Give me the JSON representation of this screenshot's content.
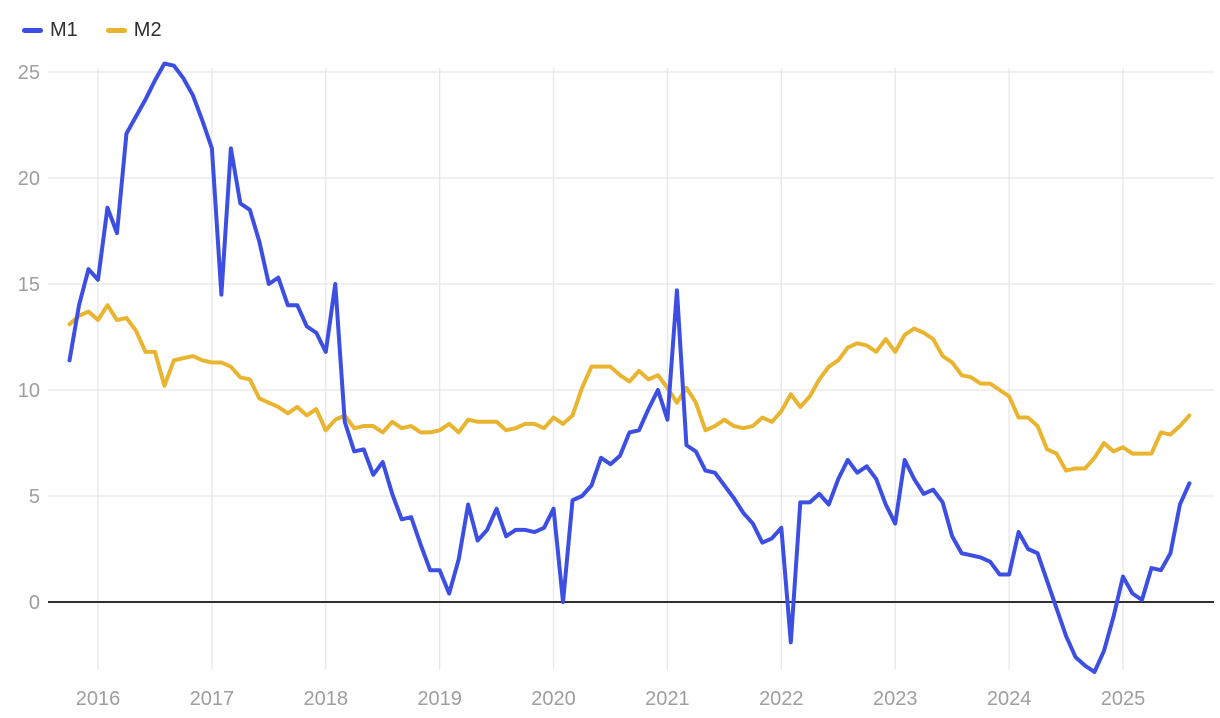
{
  "legend": {
    "items": [
      {
        "label": "M1",
        "color": "#3c4fe2"
      },
      {
        "label": "M2",
        "color": "#e9b42f"
      }
    ]
  },
  "chart_data": {
    "type": "line",
    "title": "",
    "frequency": "monthly",
    "x_start": "2015-09",
    "x_end": "2025-07",
    "unit": "percent_yoy",
    "grid": true,
    "legend_position": "top-left",
    "background": "#ffffff",
    "grid_color": "#e7e7e7",
    "zero_line_color": "#2f2f2f",
    "tick_label_color": "#9e9e9e",
    "x_tick_labels": [
      "2016",
      "2017",
      "2018",
      "2019",
      "2020",
      "2021",
      "2022",
      "2023",
      "2024",
      "2025"
    ],
    "y_ticks": [
      0,
      5,
      10,
      15,
      20,
      25
    ],
    "y_tick_labels": [
      "0",
      "5",
      "10",
      "15",
      "20",
      "25"
    ],
    "ylim": [
      -3.9,
      25.8
    ],
    "series": [
      {
        "name": "M1",
        "color": "#3c4fe2",
        "values": [
          11.4,
          14.0,
          15.7,
          15.2,
          18.6,
          17.4,
          22.1,
          22.9,
          23.7,
          24.6,
          25.4,
          25.3,
          24.7,
          23.9,
          22.7,
          21.4,
          14.5,
          21.4,
          18.8,
          18.5,
          17.0,
          15.0,
          15.3,
          14.0,
          14.0,
          13.0,
          12.7,
          11.8,
          15.0,
          8.5,
          7.1,
          7.2,
          6.0,
          6.6,
          5.1,
          3.9,
          4.0,
          2.7,
          1.5,
          1.5,
          0.4,
          2.0,
          4.6,
          2.9,
          3.4,
          4.4,
          3.1,
          3.4,
          3.4,
          3.3,
          3.5,
          4.4,
          0.0,
          4.8,
          5.0,
          5.5,
          6.8,
          6.5,
          6.9,
          8.0,
          8.1,
          9.1,
          10.0,
          8.6,
          14.7,
          7.4,
          7.1,
          6.2,
          6.1,
          5.5,
          4.9,
          4.2,
          3.7,
          2.8,
          3.0,
          3.5,
          -1.9,
          4.7,
          4.7,
          5.1,
          4.6,
          5.8,
          6.7,
          6.1,
          6.4,
          5.8,
          4.6,
          3.7,
          6.7,
          5.8,
          5.1,
          5.3,
          4.7,
          3.1,
          2.3,
          2.2,
          2.1,
          1.9,
          1.3,
          1.3,
          3.3,
          2.5,
          2.3,
          1.0,
          -0.3,
          -1.6,
          -2.6,
          -3.0,
          -3.3,
          -2.3,
          -0.7,
          1.2,
          0.4,
          0.1,
          1.6,
          1.5,
          2.3,
          4.6,
          5.6
        ]
      },
      {
        "name": "M2",
        "color": "#e9b42f",
        "values": [
          13.1,
          13.5,
          13.7,
          13.3,
          14.0,
          13.3,
          13.4,
          12.8,
          11.8,
          11.8,
          10.2,
          11.4,
          11.5,
          11.6,
          11.4,
          11.3,
          11.3,
          11.1,
          10.6,
          10.5,
          9.6,
          9.4,
          9.2,
          8.9,
          9.2,
          8.8,
          9.1,
          8.1,
          8.6,
          8.8,
          8.2,
          8.3,
          8.3,
          8.0,
          8.5,
          8.2,
          8.3,
          8.0,
          8.0,
          8.1,
          8.4,
          8.0,
          8.6,
          8.5,
          8.5,
          8.5,
          8.1,
          8.2,
          8.4,
          8.4,
          8.2,
          8.7,
          8.4,
          8.8,
          10.1,
          11.1,
          11.1,
          11.1,
          10.7,
          10.4,
          10.9,
          10.5,
          10.7,
          10.1,
          9.4,
          10.1,
          9.4,
          8.1,
          8.3,
          8.6,
          8.3,
          8.2,
          8.3,
          8.7,
          8.5,
          9.0,
          9.8,
          9.2,
          9.7,
          10.5,
          11.1,
          11.4,
          12.0,
          12.2,
          12.1,
          11.8,
          12.4,
          11.8,
          12.6,
          12.9,
          12.7,
          12.4,
          11.6,
          11.3,
          10.7,
          10.6,
          10.3,
          10.3,
          10.0,
          9.7,
          8.7,
          8.7,
          8.3,
          7.2,
          7.0,
          6.2,
          6.3,
          6.3,
          6.8,
          7.5,
          7.1,
          7.3,
          7.0,
          7.0,
          7.0,
          8.0,
          7.9,
          8.3,
          8.8
        ]
      }
    ]
  }
}
